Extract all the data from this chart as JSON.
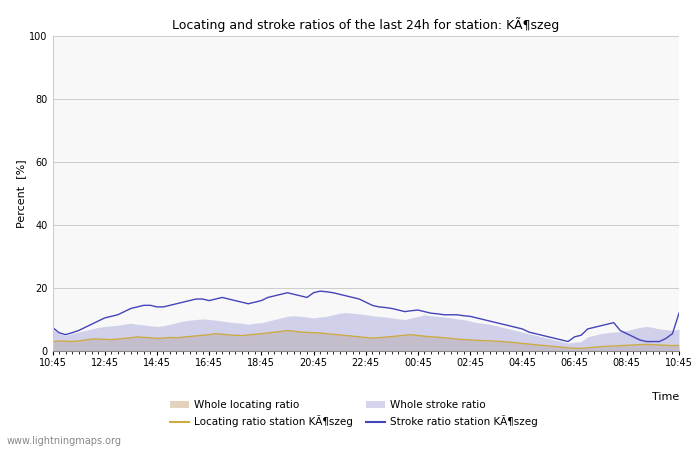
{
  "title": "Locating and stroke ratios of the last 24h for station: KÃ¶szeg",
  "ylabel": "Percent  [%]",
  "xlabel": "Time",
  "watermark": "www.lightningmaps.org",
  "ylim": [
    0,
    100
  ],
  "yticks": [
    0,
    20,
    40,
    60,
    80,
    100
  ],
  "x_labels": [
    "10:45",
    "12:45",
    "14:45",
    "16:45",
    "18:45",
    "20:45",
    "22:45",
    "00:45",
    "02:45",
    "04:45",
    "06:45",
    "08:45",
    "10:45"
  ],
  "bg_color": "#ffffff",
  "plot_bg_color": "#f8f8f8",
  "grid_color": "#cccccc",
  "whole_locating_fill_color": "#d4bc9a",
  "whole_locating_fill_alpha": 0.65,
  "whole_stroke_fill_color": "#aaaadd",
  "whole_stroke_fill_alpha": 0.5,
  "locating_station_color": "#ccaa44",
  "stroke_station_color": "#4444bb",
  "n_points": 97,
  "whole_locating": [
    3.0,
    3.2,
    3.1,
    3.0,
    3.2,
    3.5,
    3.8,
    3.8,
    3.7,
    3.6,
    3.8,
    4.0,
    4.2,
    4.5,
    4.3,
    4.2,
    4.0,
    4.1,
    4.3,
    4.2,
    4.4,
    4.6,
    4.8,
    5.0,
    5.2,
    5.5,
    5.3,
    5.1,
    5.0,
    4.9,
    5.1,
    5.3,
    5.5,
    5.7,
    6.0,
    6.2,
    6.5,
    6.3,
    6.0,
    5.9,
    5.8,
    5.7,
    5.5,
    5.3,
    5.1,
    4.9,
    4.7,
    4.5,
    4.3,
    4.1,
    4.2,
    4.4,
    4.6,
    4.8,
    5.0,
    5.2,
    4.9,
    4.7,
    4.5,
    4.4,
    4.2,
    4.0,
    3.8,
    3.6,
    3.5,
    3.4,
    3.3,
    3.2,
    3.1,
    3.0,
    2.8,
    2.6,
    2.4,
    2.2,
    2.0,
    1.8,
    1.6,
    1.4,
    1.2,
    1.0,
    0.9,
    0.8,
    1.0,
    1.2,
    1.4,
    1.5,
    1.6,
    1.7,
    1.8,
    1.9,
    2.0,
    2.1,
    2.0,
    1.9,
    1.8,
    1.7,
    1.8
  ],
  "whole_stroke": [
    7.0,
    5.5,
    5.0,
    5.5,
    6.0,
    6.5,
    7.0,
    7.5,
    7.8,
    8.0,
    8.2,
    8.5,
    8.8,
    8.5,
    8.3,
    8.0,
    7.8,
    8.0,
    8.5,
    9.0,
    9.5,
    9.8,
    10.0,
    10.2,
    10.0,
    9.8,
    9.5,
    9.2,
    9.0,
    8.8,
    8.5,
    8.8,
    9.0,
    9.5,
    10.0,
    10.5,
    11.0,
    11.2,
    11.0,
    10.8,
    10.5,
    10.8,
    11.0,
    11.5,
    12.0,
    12.2,
    12.0,
    11.8,
    11.5,
    11.2,
    11.0,
    10.8,
    10.5,
    10.2,
    10.0,
    10.5,
    11.0,
    11.5,
    11.2,
    11.0,
    10.8,
    10.5,
    10.2,
    10.0,
    9.5,
    9.0,
    8.8,
    8.5,
    8.0,
    7.5,
    7.0,
    6.5,
    6.0,
    5.5,
    5.0,
    4.5,
    4.0,
    3.5,
    3.0,
    2.5,
    2.8,
    3.0,
    4.5,
    5.0,
    5.5,
    5.8,
    6.0,
    6.2,
    6.5,
    7.0,
    7.5,
    7.8,
    7.5,
    7.0,
    6.8,
    6.5,
    7.0
  ],
  "locating_station": [
    3.0,
    3.2,
    3.1,
    3.0,
    3.2,
    3.5,
    3.8,
    3.8,
    3.7,
    3.6,
    3.8,
    4.0,
    4.2,
    4.5,
    4.3,
    4.2,
    4.0,
    4.1,
    4.3,
    4.2,
    4.4,
    4.6,
    4.8,
    5.0,
    5.2,
    5.5,
    5.3,
    5.1,
    5.0,
    4.9,
    5.1,
    5.3,
    5.5,
    5.7,
    6.0,
    6.2,
    6.5,
    6.3,
    6.0,
    5.9,
    5.8,
    5.7,
    5.5,
    5.3,
    5.1,
    4.9,
    4.7,
    4.5,
    4.3,
    4.1,
    4.2,
    4.4,
    4.6,
    4.8,
    5.0,
    5.2,
    4.9,
    4.7,
    4.5,
    4.4,
    4.2,
    4.0,
    3.8,
    3.6,
    3.5,
    3.4,
    3.3,
    3.2,
    3.1,
    3.0,
    2.8,
    2.6,
    2.4,
    2.2,
    2.0,
    1.8,
    1.6,
    1.4,
    1.2,
    1.0,
    0.9,
    0.8,
    1.0,
    1.2,
    1.4,
    1.5,
    1.6,
    1.7,
    1.8,
    1.9,
    2.0,
    2.1,
    2.0,
    1.9,
    1.8,
    1.7,
    1.8
  ],
  "stroke_station": [
    7.5,
    5.8,
    5.2,
    5.8,
    6.5,
    7.5,
    8.5,
    9.5,
    10.5,
    11.0,
    11.5,
    12.5,
    13.5,
    14.0,
    14.5,
    14.5,
    14.0,
    14.0,
    14.5,
    15.0,
    15.5,
    16.0,
    16.5,
    16.5,
    16.0,
    16.5,
    17.0,
    16.5,
    16.0,
    15.5,
    15.0,
    15.5,
    16.0,
    17.0,
    17.5,
    18.0,
    18.5,
    18.0,
    17.5,
    17.0,
    18.5,
    19.0,
    18.8,
    18.5,
    18.0,
    17.5,
    17.0,
    16.5,
    15.5,
    14.5,
    14.0,
    13.8,
    13.5,
    13.0,
    12.5,
    12.8,
    13.0,
    12.5,
    12.0,
    11.8,
    11.5,
    11.5,
    11.5,
    11.2,
    11.0,
    10.5,
    10.0,
    9.5,
    9.0,
    8.5,
    8.0,
    7.5,
    7.0,
    6.0,
    5.5,
    5.0,
    4.5,
    4.0,
    3.5,
    3.0,
    4.5,
    5.0,
    7.0,
    7.5,
    8.0,
    8.5,
    9.0,
    6.5,
    5.5,
    4.5,
    3.5,
    3.0,
    3.0,
    3.0,
    4.0,
    5.5,
    12.0
  ],
  "legend_label_whole_locating": "Whole locating ratio",
  "legend_label_locating_station": "Locating ratio station KÃ¶szeg",
  "legend_label_whole_stroke": "Whole stroke ratio",
  "legend_label_stroke_station": "Stroke ratio station KÃ¶szeg"
}
